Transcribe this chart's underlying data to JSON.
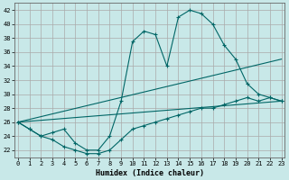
{
  "title": "",
  "xlabel": "Humidex (Indice chaleur)",
  "ylabel": "",
  "bg_color": "#c8e8e8",
  "grid_color": "#aaaaaa",
  "line_color": "#006666",
  "x_ticks": [
    0,
    1,
    2,
    3,
    4,
    5,
    6,
    7,
    8,
    9,
    10,
    11,
    12,
    13,
    14,
    15,
    16,
    17,
    18,
    19,
    20,
    21,
    22,
    23
  ],
  "y_ticks": [
    22,
    24,
    26,
    28,
    30,
    32,
    34,
    36,
    38,
    40,
    42
  ],
  "xlim": [
    -0.3,
    23.3
  ],
  "ylim": [
    21.0,
    43.0
  ],
  "series": {
    "max": {
      "x": [
        0,
        1,
        2,
        3,
        4,
        5,
        6,
        7,
        8,
        9,
        10,
        11,
        12,
        13,
        14,
        15,
        16,
        17,
        18,
        19,
        20,
        21,
        22,
        23
      ],
      "y": [
        26,
        25,
        24,
        24.5,
        25,
        23,
        22,
        22,
        24,
        29,
        37.5,
        39,
        38.5,
        34,
        41,
        42,
        41.5,
        40,
        37,
        35,
        31.5,
        30,
        29.5,
        29
      ]
    },
    "avg_high": {
      "x": [
        0,
        23
      ],
      "y": [
        26,
        35
      ]
    },
    "avg_low": {
      "x": [
        0,
        23
      ],
      "y": [
        26,
        29
      ]
    },
    "min": {
      "x": [
        0,
        1,
        2,
        3,
        4,
        5,
        6,
        7,
        8,
        9,
        10,
        11,
        12,
        13,
        14,
        15,
        16,
        17,
        18,
        19,
        20,
        21,
        22,
        23
      ],
      "y": [
        26,
        25,
        24,
        23.5,
        22.5,
        22,
        21.5,
        21.5,
        22,
        23.5,
        25,
        25.5,
        26,
        26.5,
        27,
        27.5,
        28,
        28,
        28.5,
        29,
        29.5,
        29,
        29.5,
        29
      ]
    }
  }
}
